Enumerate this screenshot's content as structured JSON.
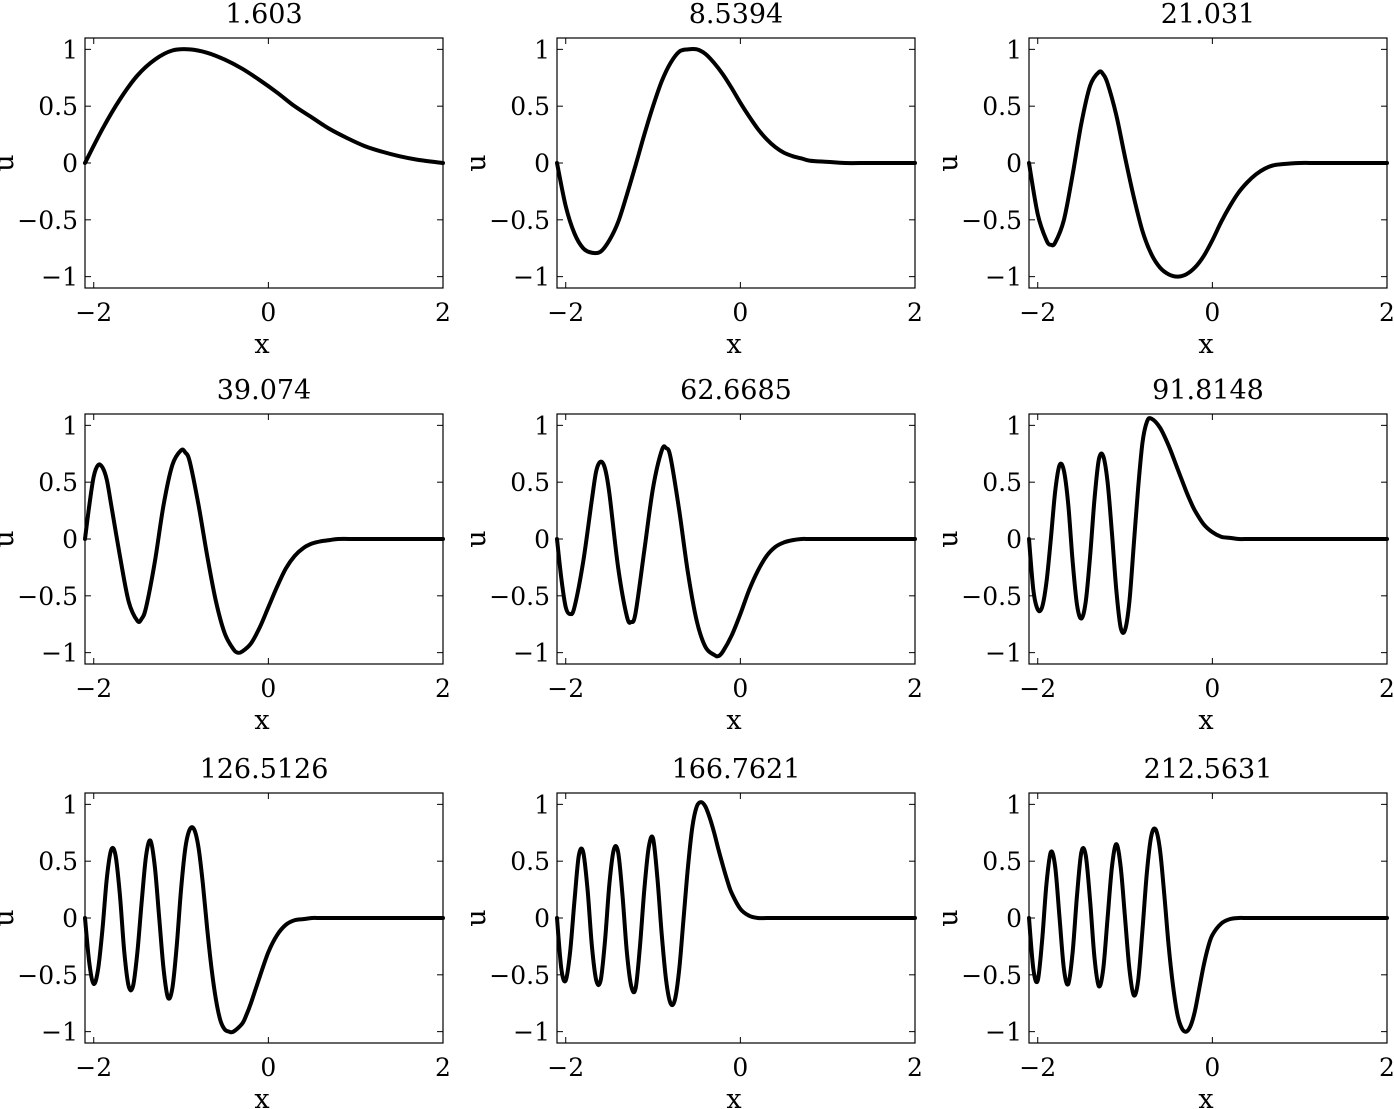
{
  "figure": {
    "layout": {
      "rows": 3,
      "cols": 3
    },
    "colors": {
      "background": "#ffffff",
      "line": "#000000",
      "axes": "#000000"
    }
  },
  "chart_data": [
    {
      "type": "line",
      "title": "1.603",
      "xlabel": "x",
      "ylabel": "u",
      "xlim": [
        -2.1,
        2
      ],
      "ylim": [
        -1.1,
        1.1
      ],
      "xticks": [
        -2,
        0,
        2
      ],
      "xtick_labels": [
        "−2",
        "0",
        "2"
      ],
      "yticks": [
        -1,
        -0.5,
        0,
        0.5,
        1
      ],
      "ytick_labels": [
        "−1",
        "−0.5",
        "0",
        "0.5",
        "1"
      ],
      "grid": false,
      "series": [
        {
          "x": [
            -2.1,
            -1.9,
            -1.7,
            -1.5,
            -1.3,
            -1.1,
            -0.9,
            -0.7,
            -0.5,
            -0.3,
            -0.1,
            0.1,
            0.3,
            0.5,
            0.7,
            0.9,
            1.1,
            1.3,
            1.5,
            1.7,
            2.0
          ],
          "y": [
            0.0,
            0.3,
            0.56,
            0.77,
            0.91,
            0.99,
            1.0,
            0.97,
            0.91,
            0.83,
            0.73,
            0.62,
            0.5,
            0.4,
            0.3,
            0.22,
            0.15,
            0.1,
            0.06,
            0.03,
            0.0
          ]
        }
      ]
    },
    {
      "type": "line",
      "title": "8.5394",
      "xlabel": "x",
      "ylabel": "u",
      "xlim": [
        -2.1,
        2
      ],
      "ylim": [
        -1.1,
        1.1
      ],
      "xticks": [
        -2,
        0,
        2
      ],
      "xtick_labels": [
        "−2",
        "0",
        "2"
      ],
      "yticks": [
        -1,
        -0.5,
        0,
        0.5,
        1
      ],
      "ytick_labels": [
        "−1",
        "−0.5",
        "0",
        "0.5",
        "1"
      ],
      "grid": false,
      "series": [
        {
          "x": [
            -2.1,
            -2.0,
            -1.9,
            -1.8,
            -1.7,
            -1.6,
            -1.5,
            -1.4,
            -1.3,
            -1.2,
            -1.1,
            -1.0,
            -0.9,
            -0.8,
            -0.7,
            -0.6,
            -0.5,
            -0.4,
            -0.3,
            -0.2,
            -0.1,
            0.0,
            0.1,
            0.2,
            0.3,
            0.4,
            0.5,
            0.6,
            0.7,
            0.8,
            1.0,
            1.2,
            1.5,
            2.0
          ],
          "y": [
            0.0,
            -0.38,
            -0.62,
            -0.75,
            -0.79,
            -0.78,
            -0.68,
            -0.52,
            -0.28,
            -0.02,
            0.25,
            0.5,
            0.72,
            0.88,
            0.98,
            1.0,
            1.0,
            0.96,
            0.88,
            0.78,
            0.66,
            0.53,
            0.41,
            0.3,
            0.21,
            0.14,
            0.09,
            0.06,
            0.04,
            0.02,
            0.01,
            0.0,
            0.0,
            0.0
          ]
        }
      ]
    },
    {
      "type": "line",
      "title": "21.031",
      "xlabel": "x",
      "ylabel": "u",
      "xlim": [
        -2.1,
        2
      ],
      "ylim": [
        -1.1,
        1.1
      ],
      "xticks": [
        -2,
        0,
        2
      ],
      "xtick_labels": [
        "−2",
        "0",
        "2"
      ],
      "yticks": [
        -1,
        -0.5,
        0,
        0.5,
        1
      ],
      "ytick_labels": [
        "−1",
        "−0.5",
        "0",
        "0.5",
        "1"
      ],
      "grid": false,
      "series": [
        {
          "x": [
            -2.1,
            -2.0,
            -1.9,
            -1.85,
            -1.8,
            -1.7,
            -1.6,
            -1.5,
            -1.4,
            -1.3,
            -1.25,
            -1.2,
            -1.1,
            -1.0,
            -0.9,
            -0.8,
            -0.7,
            -0.6,
            -0.5,
            -0.4,
            -0.3,
            -0.2,
            -0.1,
            0.0,
            0.1,
            0.2,
            0.3,
            0.4,
            0.5,
            0.6,
            0.7,
            0.8,
            1.0,
            1.2,
            1.5,
            2.0
          ],
          "y": [
            0.0,
            -0.45,
            -0.68,
            -0.72,
            -0.7,
            -0.5,
            -0.1,
            0.35,
            0.68,
            0.8,
            0.78,
            0.7,
            0.42,
            0.05,
            -0.3,
            -0.6,
            -0.8,
            -0.92,
            -0.98,
            -1.0,
            -0.98,
            -0.92,
            -0.82,
            -0.68,
            -0.52,
            -0.38,
            -0.26,
            -0.17,
            -0.1,
            -0.05,
            -0.02,
            -0.01,
            0.0,
            0.0,
            0.0,
            0.0
          ]
        }
      ]
    },
    {
      "type": "line",
      "title": "39.074",
      "xlabel": "x",
      "ylabel": "u",
      "xlim": [
        -2.1,
        2
      ],
      "ylim": [
        -1.1,
        1.1
      ],
      "xticks": [
        -2,
        0,
        2
      ],
      "xtick_labels": [
        "−2",
        "0",
        "2"
      ],
      "yticks": [
        -1,
        -0.5,
        0,
        0.5,
        1
      ],
      "ytick_labels": [
        "−1",
        "−0.5",
        "0",
        "0.5",
        "1"
      ],
      "grid": false,
      "series": [
        {
          "x": [
            -2.1,
            -2.05,
            -2.0,
            -1.95,
            -1.9,
            -1.85,
            -1.8,
            -1.7,
            -1.6,
            -1.5,
            -1.45,
            -1.4,
            -1.3,
            -1.2,
            -1.1,
            -1.0,
            -0.95,
            -0.9,
            -0.8,
            -0.7,
            -0.6,
            -0.5,
            -0.4,
            -0.35,
            -0.3,
            -0.2,
            -0.1,
            0.0,
            0.1,
            0.2,
            0.3,
            0.4,
            0.5,
            0.6,
            0.7,
            0.8,
            1.0,
            1.2,
            1.5,
            2.0
          ],
          "y": [
            0.0,
            0.3,
            0.55,
            0.65,
            0.63,
            0.52,
            0.3,
            -0.15,
            -0.55,
            -0.72,
            -0.7,
            -0.6,
            -0.2,
            0.3,
            0.65,
            0.78,
            0.76,
            0.68,
            0.3,
            -0.15,
            -0.55,
            -0.83,
            -0.97,
            -1.0,
            -0.99,
            -0.92,
            -0.78,
            -0.6,
            -0.42,
            -0.26,
            -0.15,
            -0.08,
            -0.04,
            -0.02,
            -0.01,
            0.0,
            0.0,
            0.0,
            0.0,
            0.0
          ]
        }
      ]
    },
    {
      "type": "line",
      "title": "62.6685",
      "xlabel": "x",
      "ylabel": "u",
      "xlim": [
        -2.1,
        2
      ],
      "ylim": [
        -1.1,
        1.1
      ],
      "xticks": [
        -2,
        0,
        2
      ],
      "xtick_labels": [
        "−2",
        "0",
        "2"
      ],
      "yticks": [
        -1,
        -0.5,
        0,
        0.5,
        1
      ],
      "ytick_labels": [
        "−1",
        "−0.5",
        "0",
        "0.5",
        "1"
      ],
      "grid": false,
      "series": [
        {
          "x": [
            -2.1,
            -2.05,
            -2.0,
            -1.95,
            -1.9,
            -1.8,
            -1.7,
            -1.65,
            -1.6,
            -1.55,
            -1.5,
            -1.4,
            -1.3,
            -1.25,
            -1.2,
            -1.1,
            -1.0,
            -0.9,
            -0.85,
            -0.8,
            -0.7,
            -0.6,
            -0.5,
            -0.4,
            -0.3,
            -0.25,
            -0.2,
            -0.1,
            0.0,
            0.1,
            0.2,
            0.3,
            0.4,
            0.5,
            0.6,
            0.7,
            0.8,
            1.0,
            1.2,
            1.5,
            2.0
          ],
          "y": [
            0.0,
            -0.35,
            -0.6,
            -0.66,
            -0.6,
            -0.2,
            0.35,
            0.6,
            0.68,
            0.62,
            0.4,
            -0.25,
            -0.68,
            -0.73,
            -0.65,
            -0.1,
            0.45,
            0.78,
            0.8,
            0.72,
            0.25,
            -0.3,
            -0.72,
            -0.95,
            -1.02,
            -1.03,
            -0.99,
            -0.85,
            -0.66,
            -0.45,
            -0.28,
            -0.15,
            -0.07,
            -0.03,
            -0.01,
            0.0,
            0.0,
            0.0,
            0.0,
            0.0,
            0.0
          ]
        }
      ]
    },
    {
      "type": "line",
      "title": "91.8148",
      "xlabel": "x",
      "ylabel": "u",
      "xlim": [
        -2.1,
        2
      ],
      "ylim": [
        -1.1,
        1.1
      ],
      "xticks": [
        -2,
        0,
        2
      ],
      "xtick_labels": [
        "−2",
        "0",
        "2"
      ],
      "yticks": [
        -1,
        -0.5,
        0,
        0.5,
        1
      ],
      "ytick_labels": [
        "−1",
        "−0.5",
        "0",
        "0.5",
        "1"
      ],
      "grid": false,
      "series": [
        {
          "x": [
            -2.1,
            -2.05,
            -2.0,
            -1.95,
            -1.9,
            -1.85,
            -1.8,
            -1.75,
            -1.7,
            -1.65,
            -1.6,
            -1.55,
            -1.5,
            -1.45,
            -1.4,
            -1.35,
            -1.3,
            -1.25,
            -1.2,
            -1.15,
            -1.1,
            -1.05,
            -1.0,
            -0.95,
            -0.9,
            -0.85,
            -0.8,
            -0.75,
            -0.7,
            -0.6,
            -0.5,
            -0.4,
            -0.3,
            -0.25,
            -0.2,
            -0.1,
            0.0,
            0.1,
            0.2,
            0.3,
            0.4,
            0.5,
            0.6,
            0.8,
            1.0,
            1.5,
            2.0
          ],
          "y": [
            0.0,
            -0.45,
            -0.62,
            -0.6,
            -0.38,
            0.0,
            0.42,
            0.65,
            0.6,
            0.3,
            -0.2,
            -0.58,
            -0.7,
            -0.55,
            -0.15,
            0.35,
            0.7,
            0.73,
            0.5,
            0.05,
            -0.45,
            -0.78,
            -0.8,
            -0.55,
            -0.05,
            0.45,
            0.85,
            1.03,
            1.06,
            0.98,
            0.82,
            0.62,
            0.42,
            0.33,
            0.25,
            0.13,
            0.06,
            0.02,
            0.01,
            0.0,
            0.0,
            0.0,
            0.0,
            0.0,
            0.0,
            0.0,
            0.0
          ]
        }
      ]
    },
    {
      "type": "line",
      "title": "126.5126",
      "xlabel": "x",
      "ylabel": "u",
      "xlim": [
        -2.1,
        2
      ],
      "ylim": [
        -1.1,
        1.1
      ],
      "xticks": [
        -2,
        0,
        2
      ],
      "xtick_labels": [
        "−2",
        "0",
        "2"
      ],
      "yticks": [
        -1,
        -0.5,
        0,
        0.5,
        1
      ],
      "ytick_labels": [
        "−1",
        "−0.5",
        "0",
        "0.5",
        "1"
      ],
      "grid": false,
      "series": [
        {
          "x": [
            -2.1,
            -2.05,
            -2.0,
            -1.95,
            -1.9,
            -1.85,
            -1.8,
            -1.75,
            -1.7,
            -1.65,
            -1.6,
            -1.55,
            -1.5,
            -1.45,
            -1.4,
            -1.35,
            -1.3,
            -1.25,
            -1.2,
            -1.15,
            -1.1,
            -1.05,
            -1.0,
            -0.95,
            -0.9,
            -0.85,
            -0.8,
            -0.75,
            -0.7,
            -0.65,
            -0.6,
            -0.55,
            -0.5,
            -0.45,
            -0.4,
            -0.3,
            -0.25,
            -0.2,
            -0.1,
            0.0,
            0.1,
            0.2,
            0.3,
            0.4,
            0.5,
            0.6,
            0.8,
            1.0,
            1.5,
            2.0
          ],
          "y": [
            0.0,
            -0.4,
            -0.58,
            -0.45,
            -0.1,
            0.35,
            0.6,
            0.55,
            0.2,
            -0.3,
            -0.6,
            -0.6,
            -0.3,
            0.15,
            0.55,
            0.68,
            0.45,
            0.0,
            -0.45,
            -0.7,
            -0.62,
            -0.25,
            0.25,
            0.62,
            0.78,
            0.78,
            0.62,
            0.3,
            -0.1,
            -0.45,
            -0.72,
            -0.9,
            -0.98,
            -1.0,
            -1.0,
            -0.93,
            -0.85,
            -0.75,
            -0.52,
            -0.3,
            -0.15,
            -0.06,
            -0.02,
            -0.01,
            0.0,
            0.0,
            0.0,
            0.0,
            0.0,
            0.0
          ]
        }
      ]
    },
    {
      "type": "line",
      "title": "166.7621",
      "xlabel": "x",
      "ylabel": "u",
      "xlim": [
        -2.1,
        2
      ],
      "ylim": [
        -1.1,
        1.1
      ],
      "xticks": [
        -2,
        0,
        2
      ],
      "xtick_labels": [
        "−2",
        "0",
        "2"
      ],
      "yticks": [
        -1,
        -0.5,
        0,
        0.5,
        1
      ],
      "ytick_labels": [
        "−1",
        "−0.5",
        "0",
        "0.5",
        "1"
      ],
      "grid": false,
      "series": [
        {
          "x": [
            -2.1,
            -2.05,
            -2.0,
            -1.95,
            -1.9,
            -1.85,
            -1.8,
            -1.75,
            -1.7,
            -1.65,
            -1.6,
            -1.55,
            -1.5,
            -1.45,
            -1.4,
            -1.35,
            -1.3,
            -1.25,
            -1.2,
            -1.15,
            -1.1,
            -1.05,
            -1.0,
            -0.95,
            -0.9,
            -0.85,
            -0.8,
            -0.75,
            -0.7,
            -0.65,
            -0.6,
            -0.55,
            -0.5,
            -0.45,
            -0.4,
            -0.35,
            -0.3,
            -0.25,
            -0.2,
            -0.15,
            -0.1,
            0.0,
            0.1,
            0.2,
            0.3,
            0.4,
            0.5,
            0.6,
            0.8,
            1.0,
            1.5,
            2.0
          ],
          "y": [
            0.0,
            -0.45,
            -0.55,
            -0.3,
            0.15,
            0.55,
            0.58,
            0.25,
            -0.25,
            -0.55,
            -0.55,
            -0.2,
            0.3,
            0.6,
            0.58,
            0.2,
            -0.3,
            -0.6,
            -0.62,
            -0.25,
            0.25,
            0.62,
            0.7,
            0.35,
            -0.15,
            -0.55,
            -0.75,
            -0.72,
            -0.45,
            0.0,
            0.45,
            0.8,
            0.98,
            1.02,
            0.98,
            0.88,
            0.75,
            0.6,
            0.46,
            0.33,
            0.22,
            0.08,
            0.02,
            0.0,
            0.0,
            0.0,
            0.0,
            0.0,
            0.0,
            0.0,
            0.0,
            0.0
          ]
        }
      ]
    },
    {
      "type": "line",
      "title": "212.5631",
      "xlabel": "x",
      "ylabel": "u",
      "xlim": [
        -2.1,
        2
      ],
      "ylim": [
        -1.1,
        1.1
      ],
      "xticks": [
        -2,
        0,
        2
      ],
      "xtick_labels": [
        "−2",
        "0",
        "2"
      ],
      "yticks": [
        -1,
        -0.5,
        0,
        0.5,
        1
      ],
      "ytick_labels": [
        "−1",
        "−0.5",
        "0",
        "0.5",
        "1"
      ],
      "grid": false,
      "series": [
        {
          "x": [
            -2.1,
            -2.05,
            -2.0,
            -1.95,
            -1.9,
            -1.85,
            -1.8,
            -1.75,
            -1.7,
            -1.65,
            -1.6,
            -1.55,
            -1.5,
            -1.45,
            -1.4,
            -1.35,
            -1.3,
            -1.25,
            -1.2,
            -1.15,
            -1.1,
            -1.05,
            -1.0,
            -0.95,
            -0.9,
            -0.85,
            -0.8,
            -0.75,
            -0.7,
            -0.65,
            -0.6,
            -0.55,
            -0.5,
            -0.45,
            -0.4,
            -0.35,
            -0.3,
            -0.25,
            -0.2,
            -0.15,
            -0.1,
            -0.05,
            0.0,
            0.1,
            0.2,
            0.3,
            0.4,
            0.6,
            0.8,
            1.0,
            1.5,
            2.0
          ],
          "y": [
            0.0,
            -0.45,
            -0.55,
            -0.2,
            0.3,
            0.58,
            0.45,
            0.0,
            -0.45,
            -0.58,
            -0.3,
            0.2,
            0.58,
            0.55,
            0.15,
            -0.35,
            -0.6,
            -0.45,
            0.0,
            0.45,
            0.65,
            0.45,
            0.0,
            -0.45,
            -0.68,
            -0.55,
            -0.1,
            0.4,
            0.72,
            0.78,
            0.6,
            0.2,
            -0.25,
            -0.6,
            -0.85,
            -0.97,
            -1.0,
            -0.95,
            -0.82,
            -0.62,
            -0.42,
            -0.26,
            -0.15,
            -0.05,
            -0.01,
            0.0,
            0.0,
            0.0,
            0.0,
            0.0,
            0.0,
            0.0
          ]
        }
      ]
    }
  ]
}
